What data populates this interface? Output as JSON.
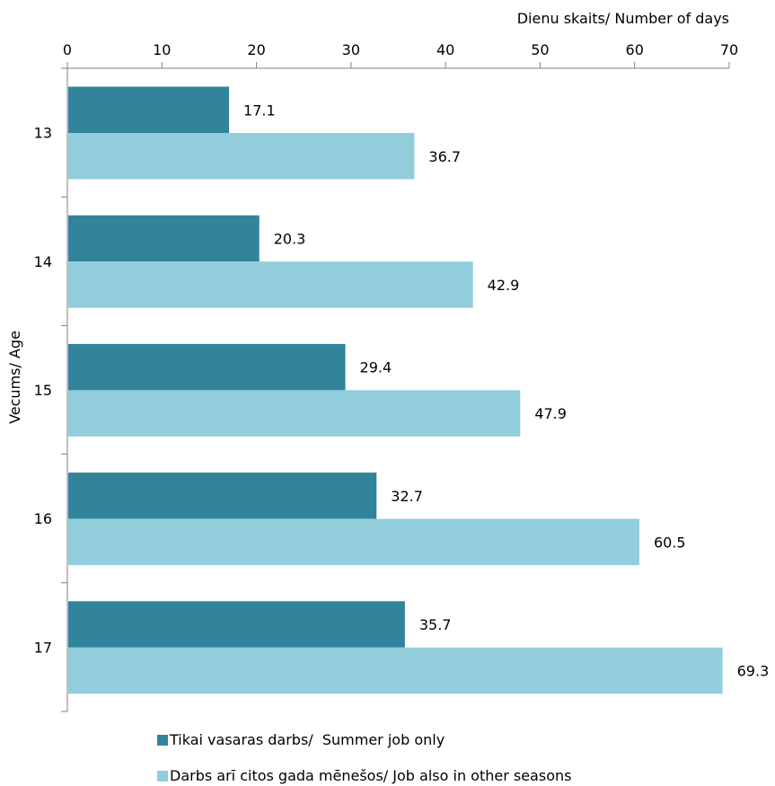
{
  "chart_data": {
    "type": "bar",
    "orientation": "horizontal",
    "categories": [
      "13",
      "14",
      "15",
      "16",
      "17"
    ],
    "series": [
      {
        "name": "Tikai vasaras darbs/  Summer job only",
        "values": [
          17.1,
          20.3,
          29.4,
          32.7,
          35.7
        ],
        "color": "#31849b"
      },
      {
        "name": "Darbs arī citos gada mēnešos/ Job also in other seasons",
        "values": [
          36.7,
          42.9,
          47.9,
          60.5,
          69.3
        ],
        "color": "#92cddc"
      }
    ],
    "xlabel": "Dienu skaits/ Number of days",
    "ylabel": "Vecums/ Age",
    "xlim": [
      0,
      70
    ],
    "xticks": [
      0,
      10,
      20,
      30,
      40,
      50,
      60,
      70
    ],
    "x_axis_position": "top",
    "grid": false,
    "legend_position": "bottom"
  }
}
